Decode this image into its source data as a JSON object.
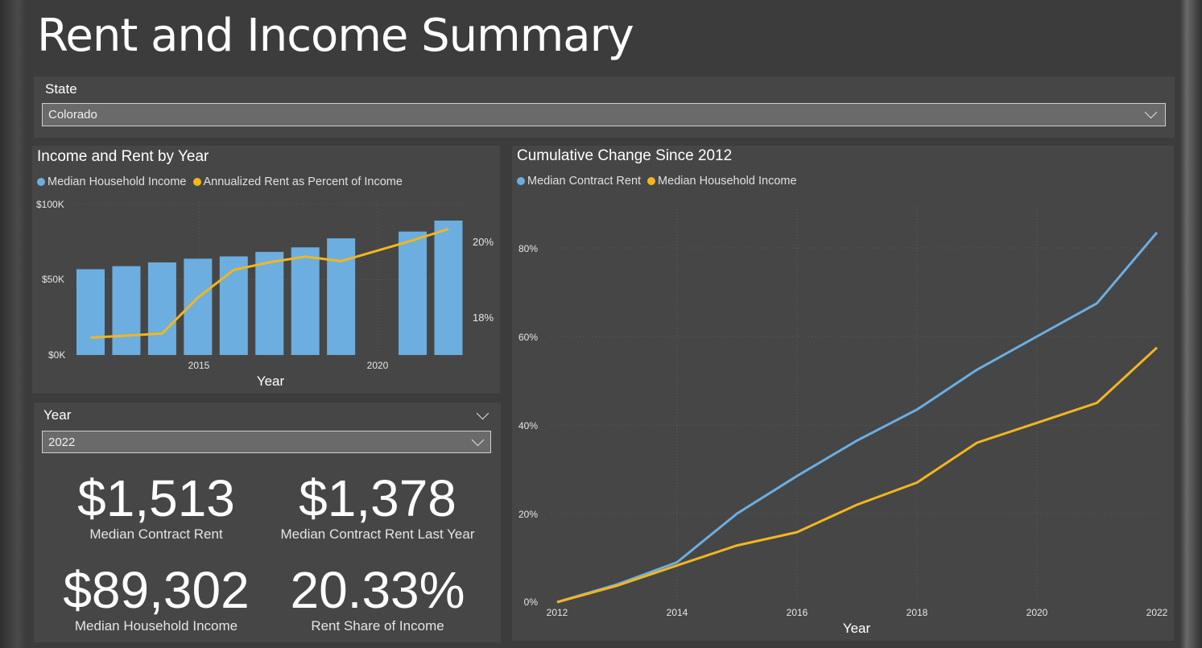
{
  "page": {
    "title": "Rent and Income Summary"
  },
  "state_slicer": {
    "label": "State",
    "selected": "Colorado"
  },
  "year_slicer": {
    "label": "Year",
    "selected": "2022"
  },
  "colors": {
    "income_blue": "#6caee0",
    "rent_gold": "#f2b61f",
    "panel": "#464646",
    "background": "#3c3c3c"
  },
  "income_rent_chart": {
    "title": "Income and Rent by Year",
    "legend": [
      "Median Household Income",
      "Annualized Rent as Percent of Income"
    ],
    "xlabel": "Year",
    "y_left_ticks": [
      "$100K",
      "$50K",
      "$0K"
    ],
    "y_right_ticks": [
      "20%",
      "18%"
    ],
    "x_ticks": [
      "2015",
      "2020"
    ]
  },
  "cumulative_chart": {
    "title": "Cumulative Change Since 2012",
    "legend": [
      "Median Contract Rent",
      "Median Household Income"
    ],
    "xlabel": "Year",
    "y_ticks": [
      "80%",
      "60%",
      "40%",
      "20%",
      "0%"
    ],
    "x_ticks": [
      "2012",
      "2014",
      "2016",
      "2018",
      "2020",
      "2022"
    ]
  },
  "kpis": [
    {
      "value": "$1,513",
      "label": "Median Contract Rent"
    },
    {
      "value": "$1,378",
      "label": "Median Contract Rent Last Year"
    },
    {
      "value": "$89,302",
      "label": "Median Household Income"
    },
    {
      "value": "20.33%",
      "label": "Rent Share of Income"
    }
  ],
  "chart_data": [
    {
      "type": "bar",
      "title": "Income and Rent by Year",
      "xlabel": "Year",
      "ylim": [
        0,
        100000
      ],
      "y2lim": [
        17,
        21
      ],
      "categories": [
        2012,
        2013,
        2014,
        2015,
        2016,
        2017,
        2018,
        2019,
        2020,
        2021,
        2022
      ],
      "series": [
        {
          "name": "Median Household Income",
          "kind": "bar",
          "values": [
            57000,
            59000,
            61500,
            64000,
            65500,
            68500,
            71500,
            77500,
            null,
            82000,
            89302
          ]
        },
        {
          "name": "Annualized Rent as Percent of Income",
          "kind": "line",
          "axis": "right",
          "values": [
            17.46,
            17.51,
            17.57,
            18.52,
            19.25,
            19.45,
            19.6,
            19.48,
            null,
            20.03,
            20.33
          ]
        }
      ]
    },
    {
      "type": "line",
      "title": "Cumulative Change Since 2012",
      "xlabel": "Year",
      "ylim": [
        0,
        0.9
      ],
      "x": [
        2012,
        2013,
        2014,
        2015,
        2016,
        2017,
        2018,
        2019,
        2020,
        2021,
        2022
      ],
      "series": [
        {
          "name": "Median Contract Rent",
          "values": [
            0,
            0.04,
            0.09,
            0.2,
            0.285,
            0.365,
            0.435,
            0.525,
            0.6,
            0.675,
            0.835
          ]
        },
        {
          "name": "Median Household Income",
          "values": [
            0,
            0.037,
            0.083,
            0.128,
            0.158,
            0.22,
            0.27,
            0.36,
            0.405,
            0.45,
            0.575
          ]
        }
      ]
    }
  ]
}
